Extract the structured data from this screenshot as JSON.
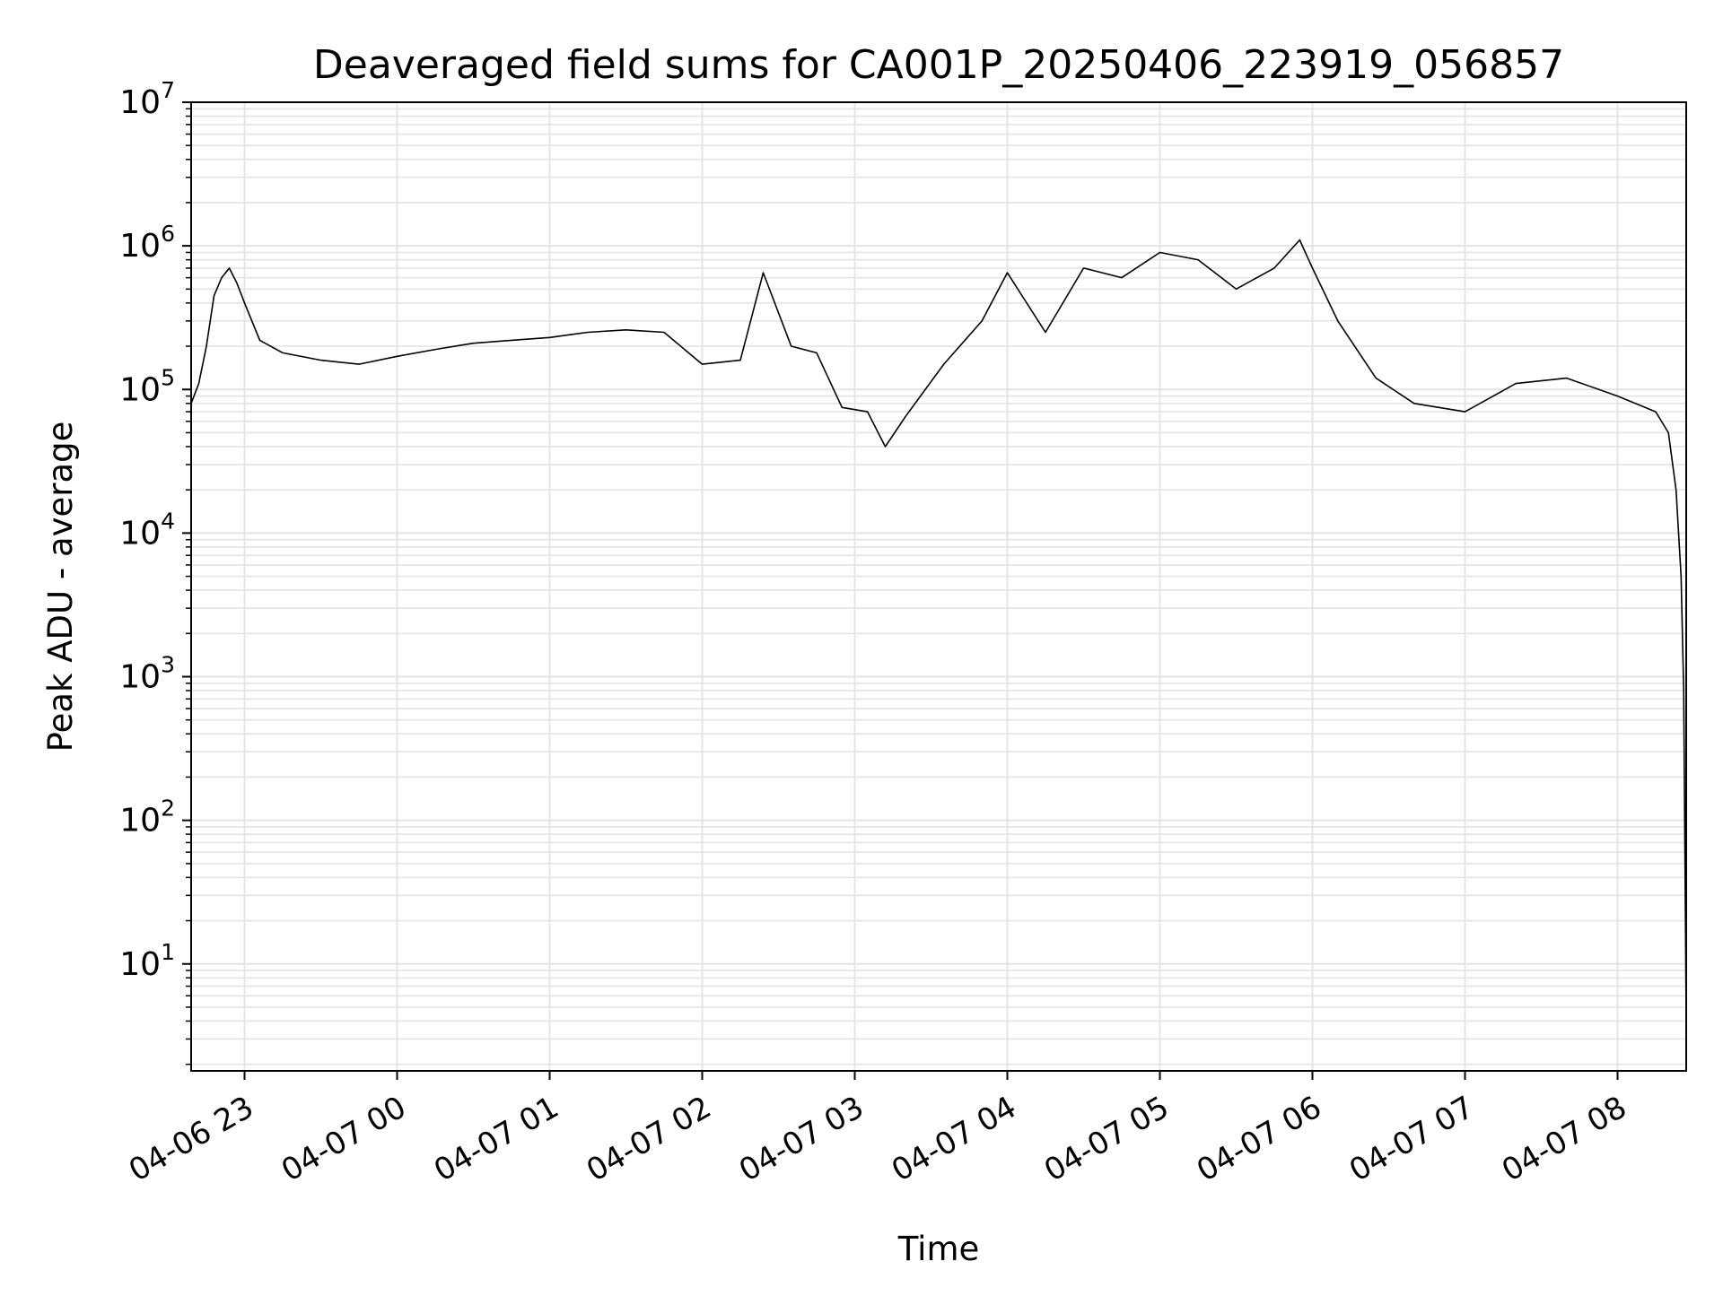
{
  "chart_data": {
    "type": "line",
    "title": "Deaveraged field sums for CA001P_20250406_223919_056857",
    "xlabel": "Time",
    "ylabel": "Peak ADU - average",
    "yscale": "log",
    "ylim": [
      1.8,
      10000000
    ],
    "xlim": [
      "2025-04-06 22:39",
      "2025-04-07 08:27"
    ],
    "grid": true,
    "x_ticks": [
      {
        "value": "2025-04-06 23:00",
        "label": "04-06 23"
      },
      {
        "value": "2025-04-07 00:00",
        "label": "04-07 00"
      },
      {
        "value": "2025-04-07 01:00",
        "label": "04-07 01"
      },
      {
        "value": "2025-04-07 02:00",
        "label": "04-07 02"
      },
      {
        "value": "2025-04-07 03:00",
        "label": "04-07 03"
      },
      {
        "value": "2025-04-07 04:00",
        "label": "04-07 04"
      },
      {
        "value": "2025-04-07 05:00",
        "label": "04-07 05"
      },
      {
        "value": "2025-04-07 06:00",
        "label": "04-07 06"
      },
      {
        "value": "2025-04-07 07:00",
        "label": "04-07 07"
      },
      {
        "value": "2025-04-07 08:00",
        "label": "04-07 08"
      }
    ],
    "y_ticks": [
      {
        "value": 10,
        "base": "10",
        "exp": "1"
      },
      {
        "value": 100,
        "base": "10",
        "exp": "2"
      },
      {
        "value": 1000,
        "base": "10",
        "exp": "3"
      },
      {
        "value": 10000,
        "base": "10",
        "exp": "4"
      },
      {
        "value": 100000,
        "base": "10",
        "exp": "5"
      },
      {
        "value": 1000000,
        "base": "10",
        "exp": "6"
      },
      {
        "value": 10000000,
        "base": "10",
        "exp": "7"
      }
    ],
    "line_color": "#000000",
    "grid_color": "#e4e4e4",
    "series": [
      {
        "x": [
          "2025-04-06 22:39",
          "2025-04-06 22:42",
          "2025-04-06 22:45",
          "2025-04-06 22:48",
          "2025-04-06 22:51",
          "2025-04-06 22:54",
          "2025-04-06 22:57",
          "2025-04-06 23:00",
          "2025-04-06 23:06",
          "2025-04-06 23:15",
          "2025-04-06 23:30",
          "2025-04-06 23:45",
          "2025-04-07 00:00",
          "2025-04-07 00:15",
          "2025-04-07 00:30",
          "2025-04-07 00:45",
          "2025-04-07 01:00",
          "2025-04-07 01:15",
          "2025-04-07 01:30",
          "2025-04-07 01:45",
          "2025-04-07 02:00",
          "2025-04-07 02:15",
          "2025-04-07 02:24",
          "2025-04-07 02:35",
          "2025-04-07 02:45",
          "2025-04-07 02:55",
          "2025-04-07 03:05",
          "2025-04-07 03:12",
          "2025-04-07 03:20",
          "2025-04-07 03:35",
          "2025-04-07 03:50",
          "2025-04-07 04:00",
          "2025-04-07 04:15",
          "2025-04-07 04:30",
          "2025-04-07 04:45",
          "2025-04-07 05:00",
          "2025-04-07 05:15",
          "2025-04-07 05:30",
          "2025-04-07 05:45",
          "2025-04-07 05:55",
          "2025-04-07 06:00",
          "2025-04-07 06:10",
          "2025-04-07 06:25",
          "2025-04-07 06:40",
          "2025-04-07 07:00",
          "2025-04-07 07:20",
          "2025-04-07 07:40",
          "2025-04-07 08:00",
          "2025-04-07 08:15",
          "2025-04-07 08:20",
          "2025-04-07 08:23",
          "2025-04-07 08:25",
          "2025-04-07 08:26",
          "2025-04-07 08:27"
        ],
        "y": [
          80000,
          110000,
          200000,
          450000,
          600000,
          700000,
          550000,
          400000,
          220000,
          180000,
          160000,
          150000,
          170000,
          190000,
          210000,
          220000,
          230000,
          250000,
          260000,
          250000,
          150000,
          160000,
          650000,
          200000,
          180000,
          75000,
          70000,
          40000,
          65000,
          150000,
          300000,
          650000,
          250000,
          700000,
          600000,
          900000,
          800000,
          500000,
          700000,
          1100000,
          700000,
          300000,
          120000,
          80000,
          70000,
          110000,
          120000,
          90000,
          70000,
          50000,
          20000,
          5000,
          800,
          4
        ]
      }
    ]
  }
}
